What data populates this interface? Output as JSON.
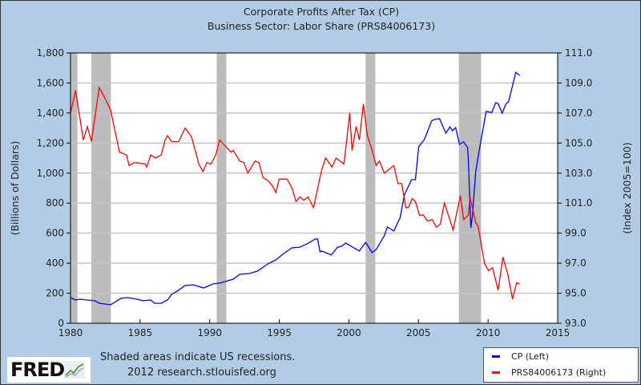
{
  "chart_data": {
    "type": "line",
    "title": "Corporate Profits After Tax (CP)",
    "subtitle": "Business Sector: Labor Share (PRS84006173)",
    "xlim": [
      1980,
      2015
    ],
    "x_ticks": [
      "1980",
      "1985",
      "1990",
      "1995",
      "2000",
      "2005",
      "2010",
      "2015"
    ],
    "y_left": {
      "label": "(Billions of Dollars)",
      "lim": [
        0,
        1800
      ],
      "ticks": [
        "0",
        "200",
        "400",
        "600",
        "800",
        "1,000",
        "1,200",
        "1,400",
        "1,600",
        "1,800"
      ]
    },
    "y_right": {
      "label": "(Index 2005=100)",
      "lim": [
        93,
        111
      ],
      "ticks": [
        "93.0",
        "95.0",
        "97.0",
        "99.0",
        "101.0",
        "103.0",
        "105.0",
        "107.0",
        "109.0",
        "111.0"
      ]
    },
    "grid": true,
    "legend_position": "bottom-right",
    "recessions": [
      [
        1980.0,
        1980.5
      ],
      [
        1981.5,
        1982.9
      ],
      [
        1990.5,
        1991.2
      ],
      [
        2001.2,
        2001.9
      ],
      [
        2007.9,
        2009.5
      ]
    ],
    "series": [
      {
        "name": "CP (Left)",
        "axis": "left",
        "color": "#0000ff",
        "x": [
          1980.0,
          1980.35,
          1980.75,
          1981.15,
          1981.73,
          1982.07,
          1982.88,
          1983.63,
          1984.09,
          1984.78,
          1985.19,
          1985.76,
          1986.05,
          1986.51,
          1986.97,
          1987.26,
          1987.67,
          1988.24,
          1988.82,
          1989.57,
          1990.26,
          1990.72,
          1991.3,
          1991.7,
          1992.16,
          1992.85,
          1993.43,
          1994.18,
          1994.76,
          1995.33,
          1995.91,
          1996.48,
          1997.0,
          1997.58,
          1997.75,
          1997.93,
          1998.04,
          1998.73,
          1999.19,
          1999.48,
          1999.77,
          2000.75,
          2001.21,
          2001.67,
          2001.96,
          2002.54,
          2002.77,
          2003.23,
          2003.69,
          2003.98,
          2004.5,
          2004.78,
          2005.01,
          2005.42,
          2005.94,
          2006.11,
          2006.51,
          2006.97,
          2007.26,
          2007.44,
          2007.67,
          2007.95,
          2008.24,
          2008.53,
          2008.59,
          2008.76,
          2008.88,
          2009.11,
          2009.4,
          2009.86,
          2010.26,
          2010.55,
          2010.72,
          2011.01,
          2011.3,
          2011.47,
          2011.99,
          2012.28
        ],
        "y": [
          171,
          155,
          160,
          155,
          150,
          133,
          123,
          166,
          171,
          160,
          150,
          155,
          133,
          133,
          155,
          192,
          214,
          251,
          256,
          235,
          262,
          267,
          283,
          294,
          326,
          331,
          347,
          395,
          422,
          465,
          502,
          507,
          529,
          561,
          561,
          475,
          481,
          454,
          507,
          513,
          534,
          481,
          539,
          470,
          491,
          582,
          641,
          614,
          705,
          854,
          956,
          956,
          1175,
          1223,
          1346,
          1356,
          1362,
          1266,
          1308,
          1282,
          1303,
          1191,
          1207,
          1170,
          1079,
          635,
          721,
          1009,
          1170,
          1410,
          1404,
          1469,
          1463,
          1399,
          1463,
          1474,
          1671,
          1650
        ]
      },
      {
        "name": "PRS84006173 (Right)",
        "axis": "right",
        "color": "#ff0000",
        "x": [
          1980.0,
          1980.36,
          1980.92,
          1981.21,
          1981.5,
          1982.06,
          1982.36,
          1982.88,
          1983.52,
          1984.03,
          1984.21,
          1984.61,
          1985.36,
          1985.48,
          1985.76,
          1986.11,
          1986.51,
          1986.8,
          1986.97,
          1987.26,
          1987.78,
          1988.24,
          1988.7,
          1989.22,
          1989.51,
          1989.8,
          1990.09,
          1990.43,
          1990.72,
          1991.12,
          1991.53,
          1991.7,
          1992.16,
          1992.45,
          1992.74,
          1993.26,
          1993.54,
          1993.83,
          1994.18,
          1994.47,
          1994.76,
          1994.99,
          1995.56,
          1995.91,
          1996.2,
          1996.48,
          1996.77,
          1997.06,
          1997.46,
          1998.04,
          1998.33,
          1998.79,
          1999.08,
          1999.65,
          2000.06,
          2000.23,
          2000.52,
          2000.75,
          2001.04,
          2001.33,
          2001.61,
          2001.96,
          2002.19,
          2002.54,
          2003.23,
          2003.52,
          2003.8,
          2004.09,
          2004.27,
          2004.55,
          2004.78,
          2005.07,
          2005.36,
          2005.65,
          2005.99,
          2006.28,
          2006.57,
          2006.86,
          2007.15,
          2007.49,
          2008.01,
          2008.24,
          2008.59,
          2008.7,
          2009.11,
          2009.28,
          2009.74,
          2010.03,
          2010.32,
          2010.72,
          2011.07,
          2011.41,
          2011.76,
          2012.05,
          2012.28
        ],
        "y": [
          107.0,
          108.5,
          105.2,
          106.1,
          105.1,
          108.7,
          108.2,
          107.2,
          104.4,
          104.2,
          103.5,
          103.7,
          103.6,
          103.4,
          104.2,
          104.0,
          104.2,
          105.2,
          105.5,
          105.1,
          105.1,
          106.0,
          105.4,
          103.6,
          103.1,
          103.7,
          103.6,
          104.2,
          105.2,
          104.8,
          104.4,
          104.5,
          103.8,
          103.7,
          103.0,
          103.8,
          103.7,
          102.7,
          102.5,
          102.2,
          101.7,
          102.6,
          102.6,
          102.0,
          101.1,
          101.4,
          101.2,
          101.4,
          100.7,
          103.2,
          104.0,
          103.4,
          104.0,
          103.6,
          107.0,
          104.5,
          106.1,
          105.2,
          107.6,
          105.5,
          104.7,
          103.5,
          103.8,
          103.0,
          103.5,
          102.3,
          102.3,
          100.7,
          100.7,
          101.3,
          101.1,
          100.2,
          100.2,
          99.8,
          99.9,
          99.4,
          99.6,
          101.0,
          100.2,
          99.2,
          101.5,
          99.9,
          100.2,
          101.4,
          99.7,
          99.5,
          97.0,
          96.5,
          96.7,
          95.2,
          97.4,
          96.3,
          94.6,
          95.7,
          95.6
        ]
      }
    ]
  },
  "footer": {
    "recession_note": "Shaded areas indicate US recessions.",
    "source": "2012 research.stlouisfed.org",
    "logo": "FRED"
  }
}
